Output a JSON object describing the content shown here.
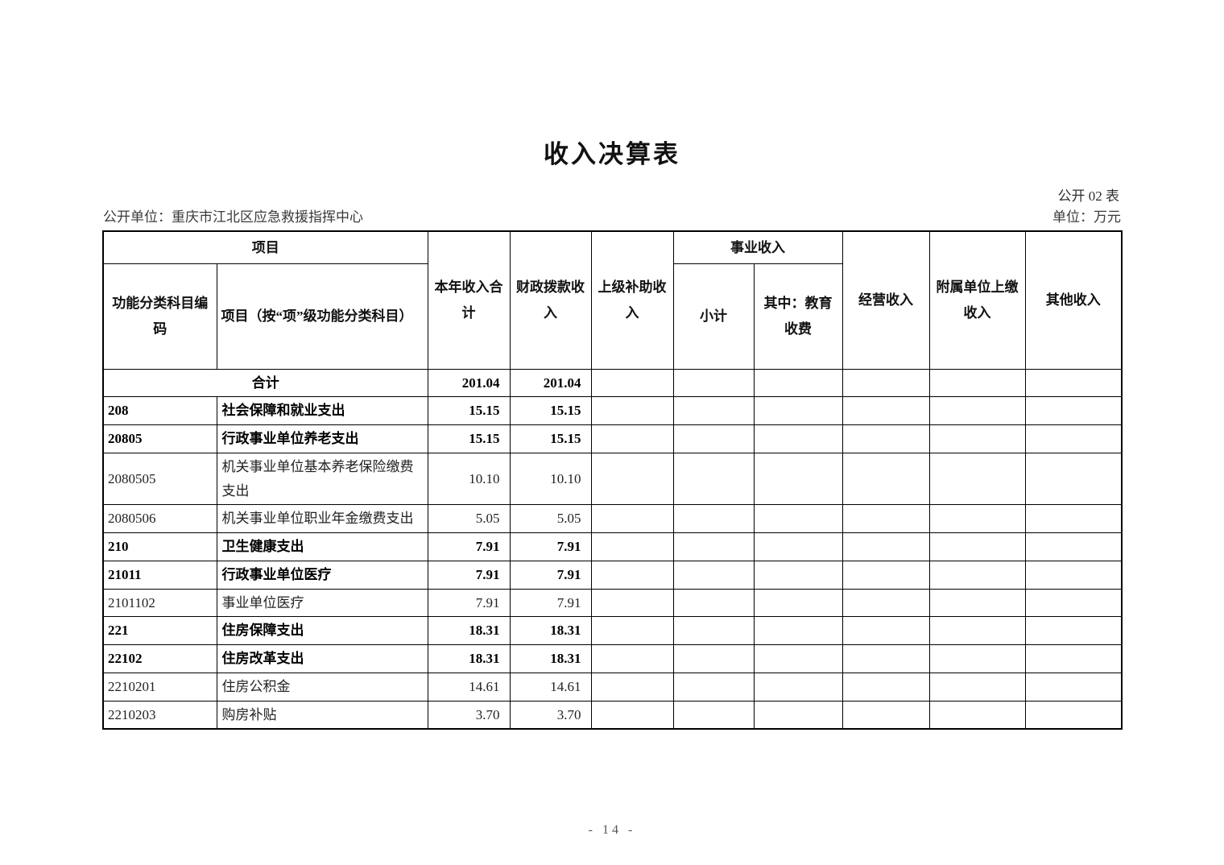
{
  "page": {
    "title": "收入决算表",
    "table_label": "公开 02 表",
    "unit_line_left": "公开单位：重庆市江北区应急救援指挥中心",
    "unit_line_right": "单位：万元",
    "page_number": "- 14 -"
  },
  "table": {
    "header": {
      "project_group": "项目",
      "code": "功能分类科目编码",
      "project_item": "项目（按“项”级功能分类科目）",
      "total_income": "本年收入合计",
      "fiscal_income": "财政拨款收入",
      "superior_subsidy": "上级补助收入",
      "business_income_group": "事业收入",
      "subtotal": "小计",
      "education_fee": "其中：教育收费",
      "operating_income": "经营收入",
      "affiliated_income": "附属单位上缴收入",
      "other_income": "其他收入"
    },
    "rows": [
      {
        "code": "",
        "name": "合计",
        "total": "201.04",
        "fiscal": "201.04",
        "bold": true,
        "merged": true
      },
      {
        "code": "208",
        "name": "社会保障和就业支出",
        "total": "15.15",
        "fiscal": "15.15",
        "bold": true,
        "merged": false
      },
      {
        "code": "20805",
        "name": "行政事业单位养老支出",
        "total": "15.15",
        "fiscal": "15.15",
        "bold": true,
        "merged": false
      },
      {
        "code": "2080505",
        "name": "机关事业单位基本养老保险缴费支出",
        "total": "10.10",
        "fiscal": "10.10",
        "bold": false,
        "merged": false
      },
      {
        "code": "2080506",
        "name": "机关事业单位职业年金缴费支出",
        "total": "5.05",
        "fiscal": "5.05",
        "bold": false,
        "merged": false
      },
      {
        "code": "210",
        "name": "卫生健康支出",
        "total": "7.91",
        "fiscal": "7.91",
        "bold": true,
        "merged": false
      },
      {
        "code": "21011",
        "name": "行政事业单位医疗",
        "total": "7.91",
        "fiscal": "7.91",
        "bold": true,
        "merged": false
      },
      {
        "code": "2101102",
        "name": "事业单位医疗",
        "total": "7.91",
        "fiscal": "7.91",
        "bold": false,
        "merged": false
      },
      {
        "code": "221",
        "name": "住房保障支出",
        "total": "18.31",
        "fiscal": "18.31",
        "bold": true,
        "merged": false
      },
      {
        "code": "22102",
        "name": "住房改革支出",
        "total": "18.31",
        "fiscal": "18.31",
        "bold": true,
        "merged": false
      },
      {
        "code": "2210201",
        "name": "住房公积金",
        "total": "14.61",
        "fiscal": "14.61",
        "bold": false,
        "merged": false
      },
      {
        "code": "2210203",
        "name": "购房补贴",
        "total": "3.70",
        "fiscal": "3.70",
        "bold": false,
        "merged": false
      }
    ]
  }
}
